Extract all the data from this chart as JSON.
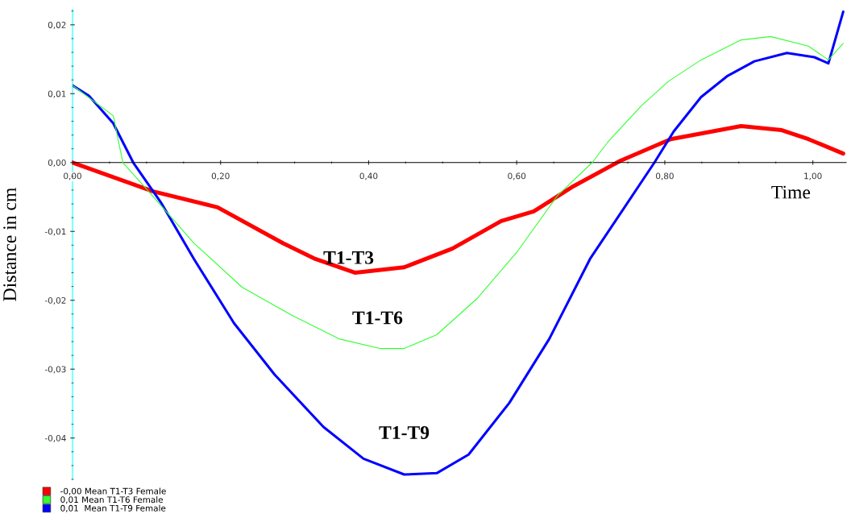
{
  "chart_data": {
    "type": "line",
    "xlabel": "Time",
    "ylabel": "Distance in cm",
    "xlim": [
      0,
      1.045
    ],
    "ylim": [
      -0.046,
      0.0222
    ],
    "xticks": [
      {
        "value": 0,
        "label": "0,00"
      },
      {
        "value": 0.2,
        "label": "0,20"
      },
      {
        "value": 0.4,
        "label": "0,40"
      },
      {
        "value": 0.6,
        "label": "0,60"
      },
      {
        "value": 0.8,
        "label": "0,80"
      },
      {
        "value": 1.0,
        "label": "1,00"
      }
    ],
    "yticks": [
      {
        "value": -0.04,
        "label": "-0,04"
      },
      {
        "value": -0.03,
        "label": "-0,03"
      },
      {
        "value": -0.02,
        "label": "-0,02"
      },
      {
        "value": -0.01,
        "label": "-0,01"
      },
      {
        "value": 0,
        "label": "0,00"
      },
      {
        "value": 0.01,
        "label": "0,01"
      },
      {
        "value": 0.02,
        "label": "0,02"
      }
    ],
    "grid": false,
    "legend": "bottom left",
    "marker": "none",
    "line_style": "solid",
    "series": [
      {
        "name": "-0,00 Mean T1-T3 Female",
        "color": "#ff0000",
        "x": [
          0,
          0.109,
          0.196,
          0.284,
          0.328,
          0.382,
          0.448,
          0.513,
          0.579,
          0.623,
          0.674,
          0.739,
          0.808,
          0.903,
          0.958,
          0.994,
          1.041
        ],
        "values": [
          0,
          -0.0042,
          -0.0065,
          -0.0117,
          -0.014,
          -0.016,
          -0.0152,
          -0.0125,
          -0.0085,
          -0.0071,
          -0.0036,
          0.0002,
          0.0034,
          0.0053,
          0.0047,
          0.0034,
          0.0013
        ]
      },
      {
        "name": "0,01 Mean T1-T6 Female",
        "color": "#33ff33",
        "x": [
          0,
          0.055,
          0.068,
          0.098,
          0.164,
          0.229,
          0.295,
          0.36,
          0.415,
          0.448,
          0.492,
          0.546,
          0.601,
          0.655,
          0.702,
          0.724,
          0.768,
          0.805,
          0.849,
          0.903,
          0.943,
          0.994,
          1.021,
          1.041
        ],
        "values": [
          0.0112,
          0.0068,
          0,
          -0.0036,
          -0.0117,
          -0.0181,
          -0.0221,
          -0.0256,
          -0.027,
          -0.027,
          -0.025,
          -0.0198,
          -0.0129,
          -0.0048,
          0,
          0.0031,
          0.0082,
          0.0118,
          0.0149,
          0.0178,
          0.0183,
          0.0169,
          0.0149,
          0.0173
        ]
      },
      {
        "name": "0,01  Mean T1-T9 Female",
        "color": "#0000ff",
        "x": [
          0,
          0.022,
          0.055,
          0.082,
          0.12,
          0.164,
          0.218,
          0.273,
          0.339,
          0.393,
          0.448,
          0.492,
          0.535,
          0.59,
          0.644,
          0.699,
          0.786,
          0.812,
          0.849,
          0.885,
          0.921,
          0.965,
          1.002,
          1.021,
          1.041
        ],
        "values": [
          0.0112,
          0.0097,
          0.0057,
          0,
          -0.0059,
          -0.014,
          -0.0233,
          -0.0308,
          -0.0384,
          -0.043,
          -0.0453,
          -0.0451,
          -0.0424,
          -0.0349,
          -0.0256,
          -0.014,
          0,
          0.0045,
          0.0095,
          0.0126,
          0.0147,
          0.0159,
          0.0153,
          0.0144,
          0.0219
        ]
      }
    ],
    "annotations": [
      "T1-T3",
      "T1-T6",
      "T1-T9"
    ]
  }
}
